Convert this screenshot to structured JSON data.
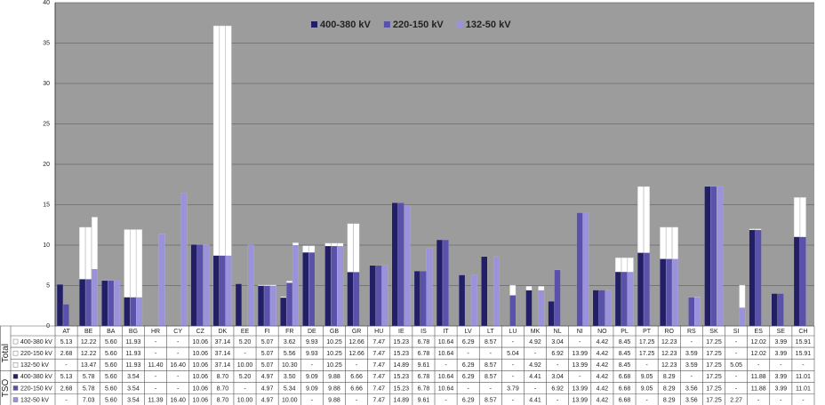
{
  "chart_data": {
    "type": "bar",
    "categories": [
      "AT",
      "BE",
      "BA",
      "BG",
      "HR",
      "CY",
      "CZ",
      "DK",
      "EE",
      "FI",
      "FR",
      "DE",
      "GB",
      "GR",
      "HU",
      "IE",
      "IS",
      "IT",
      "LV",
      "LT",
      "LU",
      "MK",
      "NL",
      "NI",
      "NO",
      "PL",
      "PT",
      "RO",
      "RS",
      "SK",
      "SI",
      "ES",
      "SE",
      "CH"
    ],
    "highlight": [
      2,
      3,
      10,
      13,
      17,
      24,
      30,
      31,
      32
    ],
    "highlight_color": "#e02020",
    "total_label": "Total",
    "tso_label": "TSO",
    "total_color": "#ffffff",
    "ylim": [
      0,
      40
    ],
    "yticks": [
      0,
      5,
      10,
      15,
      20,
      25,
      30,
      35,
      40
    ],
    "grid": true,
    "series": [
      {
        "name": "400-380 kV",
        "color": "#221f66",
        "total": [
          5.13,
          12.22,
          5.6,
          11.93,
          null,
          null,
          10.06,
          37.14,
          5.2,
          5.07,
          3.62,
          9.93,
          10.25,
          12.66,
          7.47,
          15.23,
          6.78,
          10.64,
          6.29,
          8.57,
          null,
          4.92,
          3.04,
          null,
          4.42,
          8.45,
          17.25,
          12.23,
          null,
          17.25,
          null,
          12.02,
          3.99,
          15.91
        ],
        "total_labels": [
          "5.13",
          "12.22",
          "5.60",
          "11.93",
          "-",
          "-",
          "10.06",
          "37.14",
          "5.20",
          "5.07",
          "3.62",
          "9.93",
          "10.25",
          "12.66",
          "7.47",
          "15.23",
          "6.78",
          "10.64",
          "6.29",
          "8.57",
          "-",
          "4.92",
          "3.04",
          "-",
          "4.42",
          "8.45",
          "17.25",
          "12.23",
          "-",
          "17.25",
          "-",
          "12.02",
          "3.99",
          "15.91"
        ],
        "tso": [
          5.13,
          5.78,
          5.6,
          3.54,
          null,
          null,
          10.06,
          8.7,
          5.2,
          4.97,
          3.5,
          9.09,
          9.88,
          6.66,
          7.47,
          15.23,
          6.78,
          10.64,
          6.29,
          8.57,
          null,
          4.41,
          3.04,
          null,
          4.42,
          6.68,
          9.05,
          8.29,
          null,
          17.25,
          null,
          11.88,
          3.99,
          11.01
        ],
        "tso_labels": [
          "5.13",
          "5.78",
          "5.60",
          "3.54",
          "-",
          "-",
          "10.06",
          "8.70",
          "5.20",
          "4.97",
          "3.50",
          "9.09",
          "9.88",
          "6.66",
          "7.47",
          "15.23",
          "6.78",
          "10.64",
          "6.29",
          "8.57",
          "-",
          "4.41",
          "3.04",
          "-",
          "4.42",
          "6.68",
          "9.05",
          "8.29",
          "-",
          "17.25",
          "-",
          "11.88",
          "3.99",
          "11.01"
        ]
      },
      {
        "name": "220-150 kV",
        "color": "#5a52aa",
        "total": [
          2.68,
          12.22,
          5.6,
          11.93,
          null,
          null,
          10.06,
          37.14,
          null,
          5.07,
          5.56,
          9.93,
          10.25,
          12.66,
          7.47,
          15.23,
          6.78,
          10.64,
          null,
          null,
          5.04,
          null,
          6.92,
          13.99,
          4.42,
          8.45,
          17.25,
          12.23,
          3.59,
          17.25,
          null,
          12.02,
          3.99,
          15.91
        ],
        "total_labels": [
          "2.68",
          "12.22",
          "5.60",
          "11.93",
          "-",
          "-",
          "10.06",
          "37.14",
          "-",
          "5.07",
          "5.56",
          "9.93",
          "10.25",
          "12.66",
          "7.47",
          "15.23",
          "6.78",
          "10.64",
          "-",
          "-",
          "5.04",
          "-",
          "6.92",
          "13.99",
          "4.42",
          "8.45",
          "17.25",
          "12.23",
          "3.59",
          "17.25",
          "-",
          "12.02",
          "3.99",
          "15.91"
        ],
        "tso": [
          2.68,
          5.78,
          5.6,
          3.54,
          null,
          null,
          10.06,
          8.7,
          null,
          4.97,
          5.34,
          9.09,
          9.88,
          6.66,
          7.47,
          15.23,
          6.78,
          10.64,
          null,
          null,
          3.79,
          null,
          6.92,
          13.99,
          4.42,
          6.68,
          9.05,
          8.29,
          3.56,
          17.25,
          null,
          11.88,
          3.99,
          11.01
        ],
        "tso_labels": [
          "2.68",
          "5.78",
          "5.60",
          "3.54",
          "-",
          "-",
          "10.06",
          "8.70",
          "-",
          "4.97",
          "5.34",
          "9.09",
          "9.88",
          "6.66",
          "7.47",
          "15.23",
          "6.78",
          "10.64",
          "-",
          "-",
          "3.79",
          "-",
          "6.92",
          "13.99",
          "4.42",
          "6.68",
          "9.05",
          "8.29",
          "3.56",
          "17.25",
          "-",
          "11.88",
          "3.99",
          "11.01"
        ]
      },
      {
        "name": "132-50 kV",
        "color": "#9a92da",
        "total": [
          null,
          13.47,
          5.6,
          11.93,
          11.4,
          16.4,
          10.06,
          37.14,
          10.0,
          5.07,
          10.3,
          null,
          10.25,
          null,
          7.47,
          14.89,
          9.61,
          null,
          6.29,
          8.57,
          null,
          4.92,
          null,
          13.99,
          4.42,
          8.45,
          null,
          12.23,
          3.59,
          17.25,
          5.05,
          null,
          null,
          null
        ],
        "total_labels": [
          "-",
          "13.47",
          "5.60",
          "11.93",
          "11.40",
          "16.40",
          "10.06",
          "37.14",
          "10.00",
          "5.07",
          "10.30",
          "-",
          "10.25",
          "-",
          "7.47",
          "14.89",
          "9.61",
          "-",
          "6.29",
          "8.57",
          "-",
          "4.92",
          "-",
          "13.99",
          "4.42",
          "8.45",
          "-",
          "12.23",
          "3.59",
          "17.25",
          "5.05",
          "-",
          "-",
          "-"
        ],
        "tso": [
          null,
          7.03,
          5.6,
          3.54,
          11.39,
          16.4,
          10.06,
          8.7,
          10.0,
          4.97,
          10.0,
          null,
          9.88,
          null,
          7.47,
          14.89,
          9.61,
          null,
          6.29,
          8.57,
          null,
          4.41,
          null,
          13.99,
          4.42,
          6.68,
          null,
          8.29,
          3.56,
          17.25,
          2.27,
          null,
          null,
          null
        ],
        "tso_labels": [
          "-",
          "7.03",
          "5.60",
          "3.54",
          "11.39",
          "16.40",
          "10.06",
          "8.70",
          "10.00",
          "4.97",
          "10.00",
          "-",
          "9.88",
          "-",
          "7.47",
          "14.89",
          "9.61",
          "-",
          "6.29",
          "8.57",
          "-",
          "4.41",
          "-",
          "13.99",
          "4.42",
          "6.68",
          "-",
          "8.29",
          "3.56",
          "17.25",
          "2.27",
          "-",
          "-",
          "-"
        ]
      }
    ]
  }
}
